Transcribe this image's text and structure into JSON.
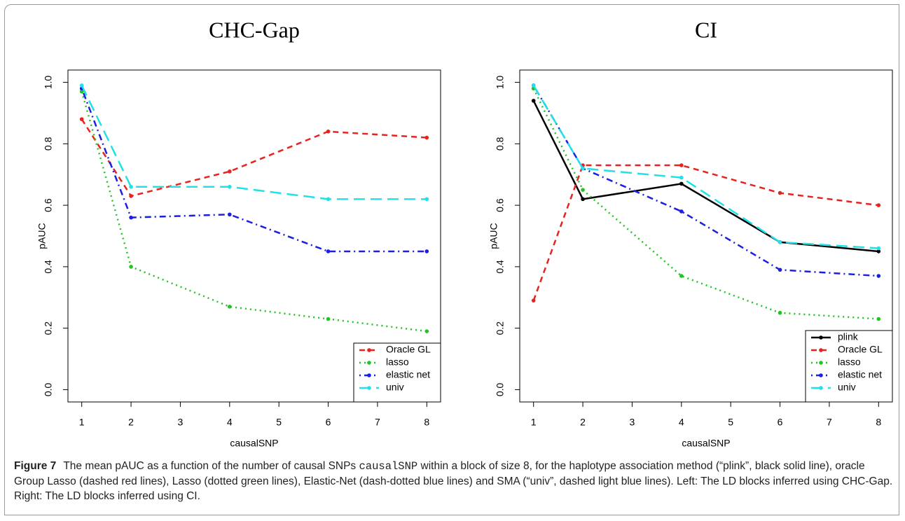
{
  "chart_data": [
    {
      "type": "line",
      "title": "CHC-Gap",
      "x_label": "causalSNP",
      "y_label": "pAUC",
      "xlim": [
        0.72,
        8.28
      ],
      "xticks": [
        1,
        2,
        3,
        4,
        5,
        6,
        7,
        8
      ],
      "ylim": [
        -0.04,
        1.04
      ],
      "yticks": [
        {
          "value": 0,
          "label": "0.0"
        },
        {
          "value": 0.2,
          "label": "0.2"
        },
        {
          "value": 0.4,
          "label": "0.4"
        },
        {
          "value": 0.6,
          "label": "0.6"
        },
        {
          "value": 0.8,
          "label": "0.8"
        },
        {
          "value": 1,
          "label": "1.0"
        }
      ],
      "legend": "bottom-right",
      "x": [
        1,
        2,
        4,
        6,
        8
      ],
      "series": [
        {
          "name": "Oracle GL",
          "color": "#e8231f",
          "linestyle": "dashed",
          "values": [
            0.88,
            0.63,
            0.71,
            0.84,
            0.82
          ]
        },
        {
          "name": "lasso",
          "color": "#22c322",
          "linestyle": "dotted",
          "values": [
            0.97,
            0.4,
            0.27,
            0.23,
            0.19
          ]
        },
        {
          "name": "elastic net",
          "color": "#1b1fe0",
          "linestyle": "dotdash",
          "values": [
            0.98,
            0.56,
            0.57,
            0.45,
            0.45
          ]
        },
        {
          "name": "univ",
          "color": "#22e0e8",
          "linestyle": "longdash",
          "values": [
            0.99,
            0.66,
            0.66,
            0.62,
            0.62
          ]
        }
      ]
    },
    {
      "type": "line",
      "title": "CI",
      "x_label": "causalSNP",
      "y_label": "pAUC",
      "xlim": [
        0.72,
        8.28
      ],
      "xticks": [
        1,
        2,
        3,
        4,
        5,
        6,
        7,
        8
      ],
      "ylim": [
        -0.04,
        1.04
      ],
      "yticks": [
        {
          "value": 0,
          "label": "0.0"
        },
        {
          "value": 0.2,
          "label": "0.2"
        },
        {
          "value": 0.4,
          "label": "0.4"
        },
        {
          "value": 0.6,
          "label": "0.6"
        },
        {
          "value": 0.8,
          "label": "0.8"
        },
        {
          "value": 1,
          "label": "1.0"
        }
      ],
      "legend": "bottom-right",
      "x": [
        1,
        2,
        4,
        6,
        8
      ],
      "series": [
        {
          "name": "plink",
          "color": "#000000",
          "linestyle": "solid",
          "values": [
            0.94,
            0.62,
            0.67,
            0.48,
            0.45
          ]
        },
        {
          "name": "Oracle GL",
          "color": "#e8231f",
          "linestyle": "dashed",
          "values": [
            0.29,
            0.73,
            0.73,
            0.64,
            0.6
          ]
        },
        {
          "name": "lasso",
          "color": "#22c322",
          "linestyle": "dotted",
          "values": [
            0.98,
            0.65,
            0.37,
            0.25,
            0.23
          ]
        },
        {
          "name": "elastic net",
          "color": "#1b1fe0",
          "linestyle": "dotdash",
          "values": [
            0.99,
            0.72,
            0.58,
            0.39,
            0.37
          ]
        },
        {
          "name": "univ",
          "color": "#22e0e8",
          "linestyle": "longdash",
          "values": [
            0.99,
            0.72,
            0.69,
            0.48,
            0.46
          ]
        }
      ]
    }
  ],
  "caption": {
    "label": "Figure 7",
    "text": "The mean pAUC as a function of the number of causal SNPs",
    "code": "causalSNP",
    "text2": "within a block of size 8, for the haplotype association method (“plink”, black solid line), oracle Group Lasso (dashed red lines), Lasso (dotted green lines), Elastic-Net (dash-dotted blue lines) and SMA (“univ”, dashed light blue lines). Left: The LD blocks inferred using CHC-Gap. Right: The LD blocks inferred using CI."
  }
}
